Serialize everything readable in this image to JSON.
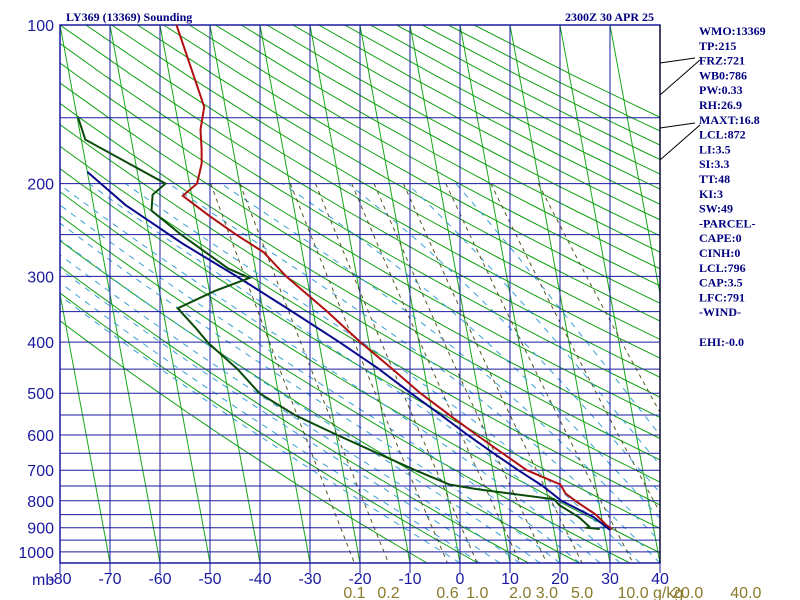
{
  "header": {
    "title": "LY369 (13369) Sounding",
    "time": "2300Z 30 APR 25"
  },
  "indices": [
    "WMO:13369",
    "TP:215",
    "FRZ:721",
    "WB0:786",
    "PW:0.33",
    "RH:26.9",
    "MAXT:16.8",
    "LCL:872",
    "LI:3.5",
    "SI:3.3",
    "TT:48",
    "KI:3",
    "SW:49",
    "-PARCEL-",
    "CAPE:0",
    "CINH:0",
    "LCL:796",
    "CAP:3.5",
    "LFC:791",
    "-WIND-",
    "",
    "EHI:-0.0"
  ],
  "axis": {
    "unit_label": "mb",
    "mr_unit": "g/kg"
  },
  "chart_data": {
    "type": "line",
    "title": "LY369 (13369) Sounding",
    "xlabel": "",
    "ylabel": "mb",
    "x_ticks": [
      "-80",
      "-70",
      "-60",
      "-50",
      "-40",
      "-30",
      "-20",
      "-10",
      "0",
      "10",
      "20",
      "30",
      "40"
    ],
    "pressure_levels": [
      100,
      200,
      300,
      400,
      500,
      600,
      700,
      800,
      900,
      1000
    ],
    "pressure_tick_labels": [
      "100",
      "200",
      "300",
      "400",
      "500",
      "600",
      "700",
      "800",
      "900",
      "1000"
    ],
    "mixing_ratio_labels": [
      "0.1",
      "0.2",
      "0.6",
      "1.0",
      "2.0",
      "3.0",
      "5.0",
      "10.0",
      "20.0",
      "40.0"
    ],
    "series": [
      {
        "color": "#b01010",
        "points": [
          [
            100,
            -56.7
          ],
          [
            143,
            -54.2
          ],
          [
            158,
            -55.8
          ],
          [
            172,
            -56.3
          ],
          [
            183,
            -56.8
          ],
          [
            190,
            -57.5
          ],
          [
            200,
            -58.5
          ],
          [
            211,
            -61.8
          ],
          [
            230,
            -57.3
          ],
          [
            250,
            -52.6
          ],
          [
            270,
            -47.7
          ],
          [
            300,
            -44.1
          ],
          [
            350,
            -37.2
          ],
          [
            400,
            -31.7
          ],
          [
            450,
            -26.3
          ],
          [
            500,
            -21.6
          ],
          [
            550,
            -16.6
          ],
          [
            600,
            -11.9
          ],
          [
            650,
            -7.4
          ],
          [
            700,
            -3.2
          ],
          [
            745,
            3.0
          ],
          [
            775,
            3.7
          ],
          [
            805,
            5.7
          ],
          [
            850,
            9.0
          ],
          [
            890,
            10.7
          ],
          [
            905,
            11.7
          ]
        ]
      },
      {
        "color": "#0a0a8c",
        "points": [
          [
            190,
            -80.0
          ],
          [
            220,
            -73.5
          ],
          [
            260,
            -63.6
          ],
          [
            300,
            -54.0
          ],
          [
            350,
            -44.2
          ],
          [
            400,
            -35.9
          ],
          [
            450,
            -29.0
          ],
          [
            500,
            -23.5
          ],
          [
            550,
            -18.3
          ],
          [
            600,
            -13.7
          ],
          [
            650,
            -9.2
          ],
          [
            700,
            -4.9
          ],
          [
            750,
            -0.6
          ],
          [
            800,
            2.6
          ],
          [
            860,
            8.5
          ],
          [
            910,
            11.3
          ]
        ]
      },
      {
        "color": "#0a4a0a",
        "points": [
          [
            150,
            -79.8
          ],
          [
            165,
            -79.2
          ],
          [
            200,
            -64.8
          ],
          [
            210,
            -67.8
          ],
          [
            225,
            -68.6
          ],
          [
            250,
            -63.6
          ],
          [
            290,
            -55.4
          ],
          [
            302,
            -51.5
          ],
          [
            320,
            -59.0
          ],
          [
            345,
            -67.0
          ],
          [
            375,
            -64.2
          ],
          [
            400,
            -62.3
          ],
          [
            450,
            -57.3
          ],
          [
            500,
            -53.8
          ],
          [
            550,
            -47.5
          ],
          [
            600,
            -39.8
          ],
          [
            650,
            -32.4
          ],
          [
            700,
            -25.5
          ],
          [
            745,
            -19.2
          ],
          [
            760,
            -14.1
          ],
          [
            795,
            1.2
          ],
          [
            815,
            2.0
          ],
          [
            860,
            5.5
          ],
          [
            895,
            7.2
          ],
          [
            900,
            6.7
          ],
          [
            905,
            9.2
          ]
        ]
      }
    ]
  }
}
